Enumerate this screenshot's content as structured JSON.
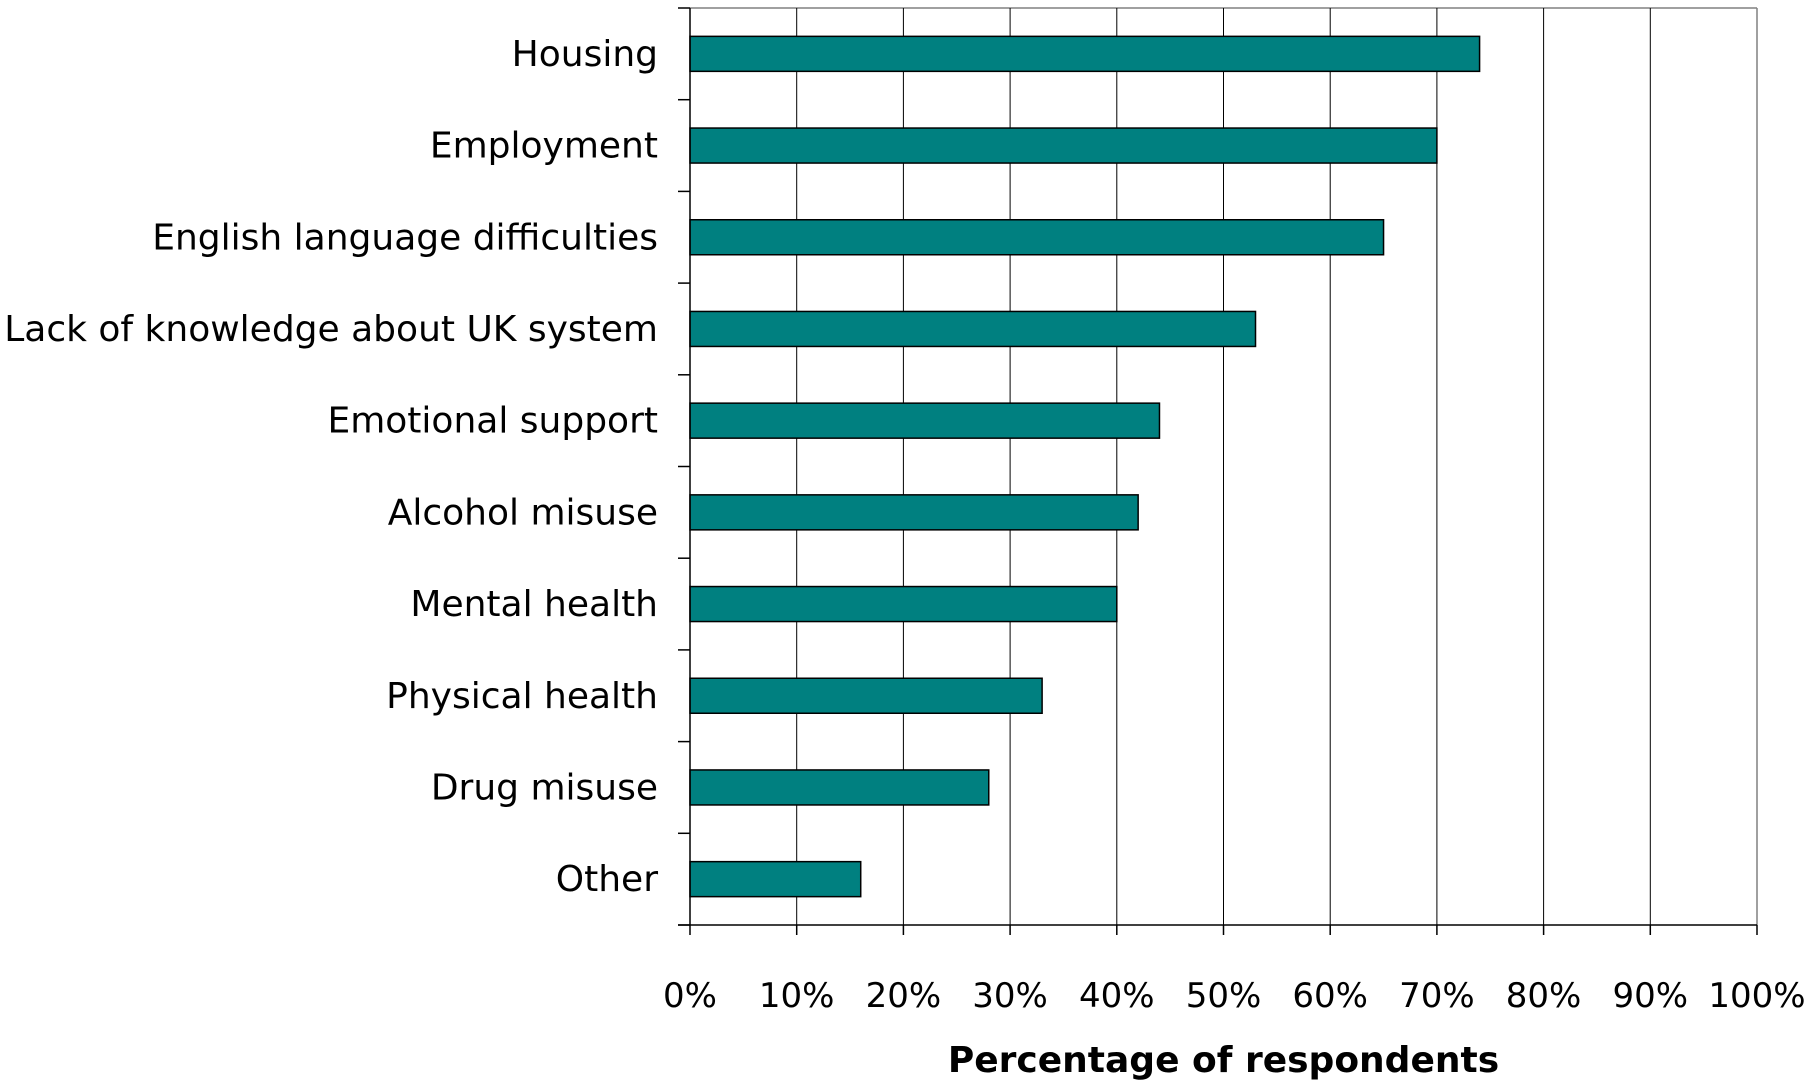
{
  "chart_data": {
    "type": "bar",
    "orientation": "horizontal",
    "categories": [
      "Housing",
      "Employment",
      "English language difficulties",
      "Lack of knowledge about UK system",
      "Emotional support",
      "Alcohol misuse",
      "Mental health",
      "Physical health",
      "Drug misuse",
      "Other"
    ],
    "values": [
      74,
      70,
      65,
      53,
      44,
      42,
      40,
      33,
      28,
      16
    ],
    "xlim": [
      0,
      100
    ],
    "x_ticks": [
      "0%",
      "10%",
      "20%",
      "30%",
      "40%",
      "50%",
      "60%",
      "70%",
      "80%",
      "90%",
      "100%"
    ],
    "xlabel": "Percentage of respondents",
    "ylabel": "",
    "title": "",
    "grid": "vertical",
    "bar_color": "#008080",
    "bar_edge_color": "#000000",
    "legend": "none"
  }
}
